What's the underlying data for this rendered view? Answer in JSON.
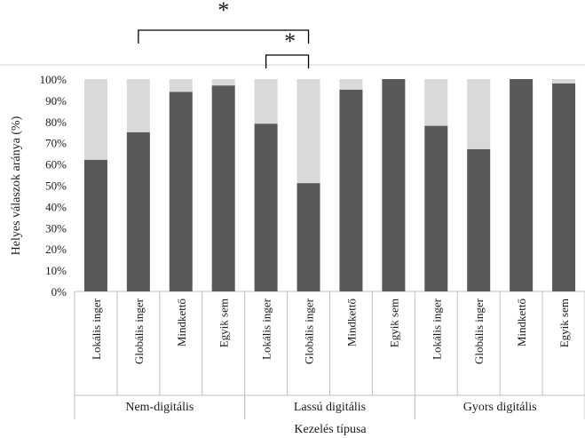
{
  "chart_data": {
    "type": "bar",
    "stacked": true,
    "groups": [
      {
        "label": "Nem-digitális",
        "categories": [
          "Lokális inger",
          "Globális inger",
          "Mindkettő",
          "Egyik sem"
        ]
      },
      {
        "label": "Lassú digitális",
        "categories": [
          "Lokális inger",
          "Globális inger",
          "Mindkettő",
          "Egyik sem"
        ]
      },
      {
        "label": "Gyors digitális",
        "categories": [
          "Lokális inger",
          "Globális inger",
          "Mindkettő",
          "Egyik sem"
        ]
      }
    ],
    "series": [
      {
        "values": [
          62,
          75,
          94,
          97,
          79,
          51,
          95,
          100,
          78,
          67,
          100,
          98
        ],
        "color": "#595959"
      },
      {
        "values": [
          38,
          25,
          6,
          3,
          21,
          49,
          5,
          0,
          22,
          33,
          0,
          2
        ],
        "color": "#d9d9d9"
      }
    ],
    "ylabel": "Helyes válaszok aránya (%)",
    "xlabel": "Kezelés típusa",
    "ylim": [
      0,
      100
    ],
    "yticks": [
      "0%",
      "10%",
      "20%",
      "30%",
      "40%",
      "50%",
      "60%",
      "70%",
      "80%",
      "90%",
      "100%"
    ],
    "grid": false,
    "significance": [
      {
        "from_bar": 1,
        "to_bar": 5,
        "label": "*"
      },
      {
        "from_bar": 4,
        "to_bar": 5,
        "label": "*"
      }
    ]
  }
}
